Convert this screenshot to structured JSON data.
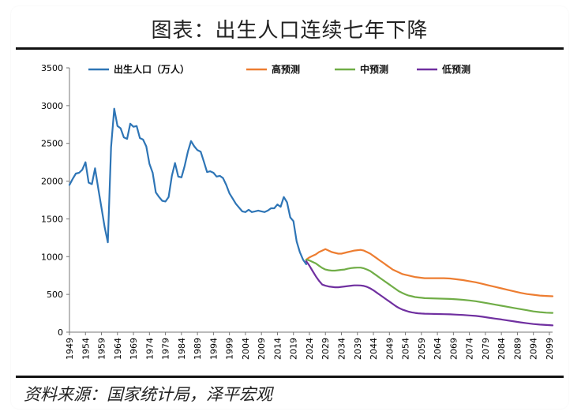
{
  "header": {
    "title": "图表：出生人口连续七年下降"
  },
  "footer": {
    "source": "资料来源：国家统计局，泽平宏观"
  },
  "chart_data": {
    "type": "line",
    "title": "",
    "xlabel": "",
    "ylabel": "",
    "ylim": [
      0,
      3500
    ],
    "yticks": [
      0,
      500,
      1000,
      1500,
      2000,
      2500,
      3000,
      3500
    ],
    "xlim": [
      1949,
      2100
    ],
    "xticks": [
      1949,
      1954,
      1959,
      1964,
      1969,
      1974,
      1979,
      1984,
      1989,
      1994,
      1999,
      2004,
      2009,
      2014,
      2019,
      2024,
      2029,
      2034,
      2039,
      2044,
      2049,
      2054,
      2059,
      2064,
      2069,
      2074,
      2079,
      2084,
      2089,
      2094,
      2099
    ],
    "grid": false,
    "legend_position": "top",
    "series": [
      {
        "name": "出生人口（万人）",
        "color": "#2e75b6",
        "points": [
          [
            1949,
            1950
          ],
          [
            1950,
            2030
          ],
          [
            1951,
            2100
          ],
          [
            1952,
            2110
          ],
          [
            1953,
            2150
          ],
          [
            1954,
            2250
          ],
          [
            1955,
            1980
          ],
          [
            1956,
            1960
          ],
          [
            1957,
            2170
          ],
          [
            1958,
            1900
          ],
          [
            1959,
            1650
          ],
          [
            1960,
            1390
          ],
          [
            1961,
            1190
          ],
          [
            1962,
            2450
          ],
          [
            1963,
            2960
          ],
          [
            1964,
            2730
          ],
          [
            1965,
            2700
          ],
          [
            1966,
            2580
          ],
          [
            1967,
            2560
          ],
          [
            1968,
            2760
          ],
          [
            1969,
            2720
          ],
          [
            1970,
            2730
          ],
          [
            1971,
            2570
          ],
          [
            1972,
            2550
          ],
          [
            1973,
            2460
          ],
          [
            1974,
            2230
          ],
          [
            1975,
            2110
          ],
          [
            1976,
            1850
          ],
          [
            1977,
            1790
          ],
          [
            1978,
            1740
          ],
          [
            1979,
            1730
          ],
          [
            1980,
            1790
          ],
          [
            1981,
            2070
          ],
          [
            1982,
            2240
          ],
          [
            1983,
            2060
          ],
          [
            1984,
            2050
          ],
          [
            1985,
            2200
          ],
          [
            1986,
            2390
          ],
          [
            1987,
            2530
          ],
          [
            1988,
            2460
          ],
          [
            1989,
            2410
          ],
          [
            1990,
            2390
          ],
          [
            1991,
            2260
          ],
          [
            1992,
            2120
          ],
          [
            1993,
            2130
          ],
          [
            1994,
            2110
          ],
          [
            1995,
            2060
          ],
          [
            1996,
            2070
          ],
          [
            1997,
            2040
          ],
          [
            1998,
            1950
          ],
          [
            1999,
            1840
          ],
          [
            2000,
            1770
          ],
          [
            2001,
            1700
          ],
          [
            2002,
            1650
          ],
          [
            2003,
            1600
          ],
          [
            2004,
            1590
          ],
          [
            2005,
            1620
          ],
          [
            2006,
            1590
          ],
          [
            2007,
            1600
          ],
          [
            2008,
            1610
          ],
          [
            2009,
            1600
          ],
          [
            2010,
            1590
          ],
          [
            2011,
            1610
          ],
          [
            2012,
            1640
          ],
          [
            2013,
            1640
          ],
          [
            2014,
            1690
          ],
          [
            2015,
            1660
          ],
          [
            2016,
            1790
          ],
          [
            2017,
            1720
          ],
          [
            2018,
            1520
          ],
          [
            2019,
            1470
          ],
          [
            2020,
            1200
          ],
          [
            2021,
            1060
          ],
          [
            2022,
            960
          ],
          [
            2023,
            900
          ]
        ]
      },
      {
        "name": "高预测",
        "color": "#ed7d31",
        "points": [
          [
            2023,
            960
          ],
          [
            2024,
            990
          ],
          [
            2025,
            1010
          ],
          [
            2026,
            1030
          ],
          [
            2027,
            1060
          ],
          [
            2028,
            1080
          ],
          [
            2029,
            1100
          ],
          [
            2030,
            1080
          ],
          [
            2031,
            1060
          ],
          [
            2032,
            1050
          ],
          [
            2033,
            1040
          ],
          [
            2034,
            1040
          ],
          [
            2035,
            1050
          ],
          [
            2036,
            1060
          ],
          [
            2037,
            1070
          ],
          [
            2038,
            1080
          ],
          [
            2039,
            1085
          ],
          [
            2040,
            1090
          ],
          [
            2041,
            1080
          ],
          [
            2042,
            1060
          ],
          [
            2043,
            1040
          ],
          [
            2044,
            1010
          ],
          [
            2045,
            980
          ],
          [
            2046,
            950
          ],
          [
            2047,
            920
          ],
          [
            2048,
            890
          ],
          [
            2049,
            860
          ],
          [
            2050,
            830
          ],
          [
            2051,
            810
          ],
          [
            2052,
            790
          ],
          [
            2053,
            770
          ],
          [
            2054,
            760
          ],
          [
            2055,
            750
          ],
          [
            2056,
            740
          ],
          [
            2057,
            730
          ],
          [
            2058,
            725
          ],
          [
            2059,
            720
          ],
          [
            2060,
            715
          ],
          [
            2062,
            715
          ],
          [
            2064,
            715
          ],
          [
            2066,
            715
          ],
          [
            2068,
            710
          ],
          [
            2070,
            700
          ],
          [
            2072,
            690
          ],
          [
            2074,
            675
          ],
          [
            2076,
            660
          ],
          [
            2078,
            640
          ],
          [
            2080,
            620
          ],
          [
            2082,
            600
          ],
          [
            2084,
            580
          ],
          [
            2086,
            560
          ],
          [
            2088,
            540
          ],
          [
            2090,
            520
          ],
          [
            2092,
            505
          ],
          [
            2094,
            495
          ],
          [
            2096,
            485
          ],
          [
            2098,
            480
          ],
          [
            2100,
            475
          ]
        ]
      },
      {
        "name": "中预测",
        "color": "#70ad47",
        "points": [
          [
            2023,
            960
          ],
          [
            2024,
            950
          ],
          [
            2025,
            930
          ],
          [
            2026,
            910
          ],
          [
            2027,
            880
          ],
          [
            2028,
            850
          ],
          [
            2029,
            830
          ],
          [
            2030,
            820
          ],
          [
            2031,
            815
          ],
          [
            2032,
            815
          ],
          [
            2033,
            820
          ],
          [
            2034,
            825
          ],
          [
            2035,
            830
          ],
          [
            2036,
            840
          ],
          [
            2037,
            848
          ],
          [
            2038,
            853
          ],
          [
            2039,
            855
          ],
          [
            2040,
            855
          ],
          [
            2041,
            845
          ],
          [
            2042,
            830
          ],
          [
            2043,
            810
          ],
          [
            2044,
            780
          ],
          [
            2045,
            750
          ],
          [
            2046,
            720
          ],
          [
            2047,
            690
          ],
          [
            2048,
            660
          ],
          [
            2049,
            630
          ],
          [
            2050,
            600
          ],
          [
            2051,
            570
          ],
          [
            2052,
            540
          ],
          [
            2053,
            520
          ],
          [
            2054,
            500
          ],
          [
            2055,
            485
          ],
          [
            2056,
            475
          ],
          [
            2057,
            465
          ],
          [
            2058,
            460
          ],
          [
            2059,
            455
          ],
          [
            2060,
            450
          ],
          [
            2062,
            448
          ],
          [
            2064,
            445
          ],
          [
            2066,
            443
          ],
          [
            2068,
            440
          ],
          [
            2070,
            435
          ],
          [
            2072,
            428
          ],
          [
            2074,
            420
          ],
          [
            2076,
            410
          ],
          [
            2078,
            395
          ],
          [
            2080,
            380
          ],
          [
            2082,
            365
          ],
          [
            2084,
            350
          ],
          [
            2086,
            335
          ],
          [
            2088,
            320
          ],
          [
            2090,
            305
          ],
          [
            2092,
            290
          ],
          [
            2094,
            275
          ],
          [
            2096,
            265
          ],
          [
            2098,
            258
          ],
          [
            2100,
            255
          ]
        ]
      },
      {
        "name": "低预测",
        "color": "#7030a0",
        "points": [
          [
            2023,
            940
          ],
          [
            2024,
            880
          ],
          [
            2025,
            810
          ],
          [
            2026,
            740
          ],
          [
            2027,
            680
          ],
          [
            2028,
            630
          ],
          [
            2029,
            615
          ],
          [
            2030,
            605
          ],
          [
            2031,
            600
          ],
          [
            2032,
            595
          ],
          [
            2033,
            595
          ],
          [
            2034,
            600
          ],
          [
            2035,
            605
          ],
          [
            2036,
            610
          ],
          [
            2037,
            615
          ],
          [
            2038,
            620
          ],
          [
            2039,
            620
          ],
          [
            2040,
            618
          ],
          [
            2041,
            612
          ],
          [
            2042,
            600
          ],
          [
            2043,
            580
          ],
          [
            2044,
            555
          ],
          [
            2045,
            525
          ],
          [
            2046,
            495
          ],
          [
            2047,
            465
          ],
          [
            2048,
            435
          ],
          [
            2049,
            405
          ],
          [
            2050,
            375
          ],
          [
            2051,
            345
          ],
          [
            2052,
            320
          ],
          [
            2053,
            300
          ],
          [
            2054,
            285
          ],
          [
            2055,
            272
          ],
          [
            2056,
            262
          ],
          [
            2057,
            255
          ],
          [
            2058,
            250
          ],
          [
            2059,
            247
          ],
          [
            2060,
            244
          ],
          [
            2062,
            242
          ],
          [
            2064,
            240
          ],
          [
            2066,
            238
          ],
          [
            2068,
            236
          ],
          [
            2070,
            232
          ],
          [
            2072,
            228
          ],
          [
            2074,
            222
          ],
          [
            2076,
            215
          ],
          [
            2078,
            205
          ],
          [
            2080,
            192
          ],
          [
            2082,
            180
          ],
          [
            2084,
            168
          ],
          [
            2086,
            155
          ],
          [
            2088,
            142
          ],
          [
            2090,
            130
          ],
          [
            2092,
            118
          ],
          [
            2094,
            108
          ],
          [
            2096,
            100
          ],
          [
            2098,
            95
          ],
          [
            2100,
            90
          ]
        ]
      }
    ]
  }
}
